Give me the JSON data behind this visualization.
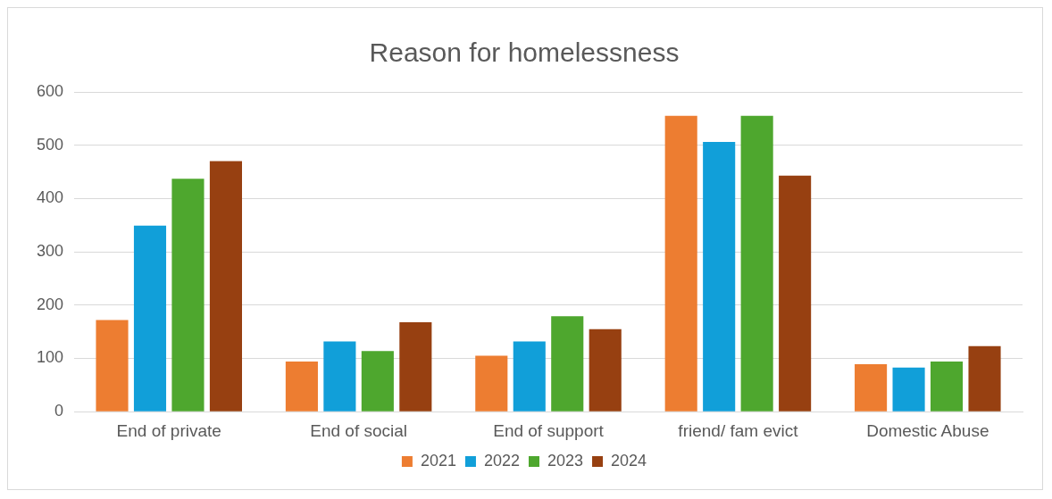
{
  "chart_data": {
    "type": "bar",
    "title": "Reason for homelessness",
    "categories": [
      "End of private",
      "End of social",
      "End of support",
      "friend/ fam evict",
      "Domestic Abuse"
    ],
    "series": [
      {
        "name": "2021",
        "color": "#ed7d31",
        "values": [
          172,
          94,
          105,
          555,
          89
        ]
      },
      {
        "name": "2022",
        "color": "#119fd9",
        "values": [
          349,
          132,
          132,
          506,
          83
        ]
      },
      {
        "name": "2023",
        "color": "#4ea72e",
        "values": [
          437,
          114,
          179,
          555,
          94
        ]
      },
      {
        "name": "2024",
        "color": "#974011",
        "values": [
          470,
          168,
          155,
          443,
          123
        ]
      }
    ],
    "ylim": [
      0,
      600
    ],
    "yticks": [
      0,
      100,
      200,
      300,
      400,
      500,
      600
    ],
    "grid": "y",
    "legend": "bottom"
  }
}
